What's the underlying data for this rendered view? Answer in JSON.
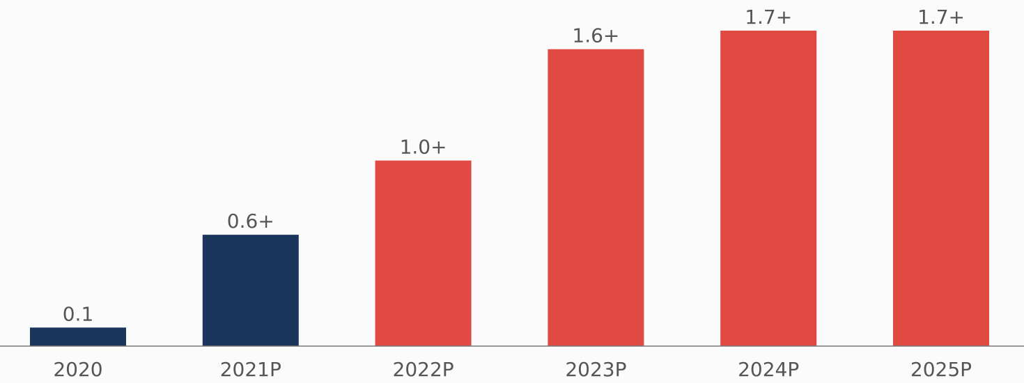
{
  "chart_data": {
    "type": "bar",
    "title": "",
    "xlabel": "",
    "ylabel": "",
    "categories": [
      "2020",
      "2021P",
      "2022P",
      "2023P",
      "2024P",
      "2025P"
    ],
    "values": [
      0.1,
      0.6,
      1.0,
      1.6,
      1.7,
      1.7
    ],
    "data_labels": [
      "0.1",
      "0.6+",
      "1.0+",
      "1.6+",
      "1.7+",
      "1.7+"
    ],
    "ylim": [
      0,
      1.7
    ],
    "grid": false,
    "bar_colors": [
      "#1b365d",
      "#1b365d",
      "#e04a42",
      "#e04a42",
      "#e04a42",
      "#e04a42"
    ],
    "axis_color": "#777777"
  }
}
